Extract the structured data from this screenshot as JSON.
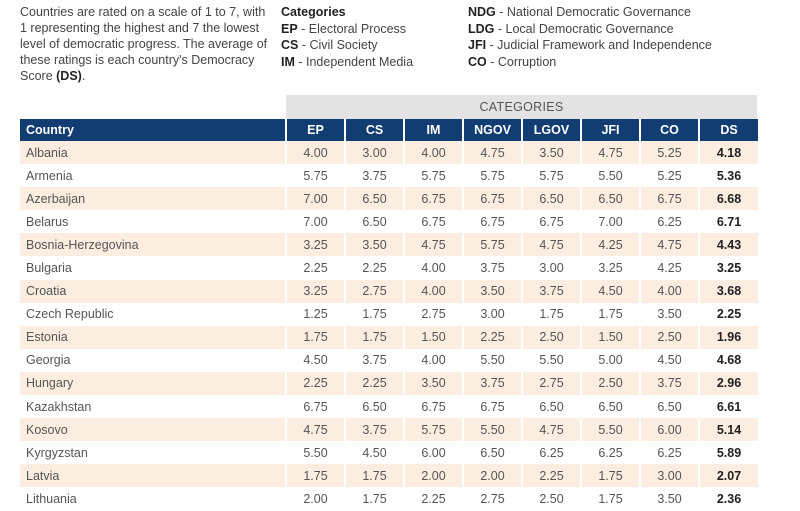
{
  "intro": {
    "text": "Countries are rated on a scale of 1 to 7, with 1 representing the highest and 7 the lowest level of democratic progress. The average of these ratings is each country's Democracy Score ",
    "ds": "(DS)",
    "end": "."
  },
  "legend": {
    "heading": "Categories",
    "left": [
      {
        "abbr": "EP",
        "name": " - Electoral Process"
      },
      {
        "abbr": "CS",
        "name": " - Civil Society"
      },
      {
        "abbr": "IM",
        "name": " - Independent Media"
      }
    ],
    "right": [
      {
        "abbr": "NDG",
        "name": " - National Democratic Governance"
      },
      {
        "abbr": "LDG",
        "name": " - Local Democratic Governance"
      },
      {
        "abbr": "JFI",
        "name": " - Judicial Framework and Independence"
      },
      {
        "abbr": "CO",
        "name": " - Corruption"
      }
    ]
  },
  "banner": "CATEGORIES",
  "columns": [
    "Country",
    "EP",
    "CS",
    "IM",
    "NGOV",
    "LGOV",
    "JFI",
    "CO",
    "DS"
  ],
  "rows": [
    [
      "Albania",
      "4.00",
      "3.00",
      "4.00",
      "4.75",
      "3.50",
      "4.75",
      "5.25",
      "4.18"
    ],
    [
      "Armenia",
      "5.75",
      "3.75",
      "5.75",
      "5.75",
      "5.75",
      "5.50",
      "5.25",
      "5.36"
    ],
    [
      "Azerbaijan",
      "7.00",
      "6.50",
      "6.75",
      "6.75",
      "6.50",
      "6.50",
      "6.75",
      "6.68"
    ],
    [
      "Belarus",
      "7.00",
      "6.50",
      "6.75",
      "6.75",
      "6.75",
      "7.00",
      "6.25",
      "6.71"
    ],
    [
      "Bosnia-Herzegovina",
      "3.25",
      "3.50",
      "4.75",
      "5.75",
      "4.75",
      "4.25",
      "4.75",
      "4.43"
    ],
    [
      "Bulgaria",
      "2.25",
      "2.25",
      "4.00",
      "3.75",
      "3.00",
      "3.25",
      "4.25",
      "3.25"
    ],
    [
      "Croatia",
      "3.25",
      "2.75",
      "4.00",
      "3.50",
      "3.75",
      "4.50",
      "4.00",
      "3.68"
    ],
    [
      "Czech Republic",
      "1.25",
      "1.75",
      "2.75",
      "3.00",
      "1.75",
      "1.75",
      "3.50",
      "2.25"
    ],
    [
      "Estonia",
      "1.75",
      "1.75",
      "1.50",
      "2.25",
      "2.50",
      "1.50",
      "2.50",
      "1.96"
    ],
    [
      "Georgia",
      "4.50",
      "3.75",
      "4.00",
      "5.50",
      "5.50",
      "5.00",
      "4.50",
      "4.68"
    ],
    [
      "Hungary",
      "2.25",
      "2.25",
      "3.50",
      "3.75",
      "2.75",
      "2.50",
      "3.75",
      "2.96"
    ],
    [
      "Kazakhstan",
      "6.75",
      "6.50",
      "6.75",
      "6.75",
      "6.50",
      "6.50",
      "6.50",
      "6.61"
    ],
    [
      "Kosovo",
      "4.75",
      "3.75",
      "5.75",
      "5.50",
      "4.75",
      "5.50",
      "6.00",
      "5.14"
    ],
    [
      "Kyrgyzstan",
      "5.50",
      "4.50",
      "6.00",
      "6.50",
      "6.25",
      "6.25",
      "6.25",
      "5.89"
    ],
    [
      "Latvia",
      "1.75",
      "1.75",
      "2.00",
      "2.00",
      "2.25",
      "1.75",
      "3.00",
      "2.07"
    ],
    [
      "Lithuania",
      "2.00",
      "1.75",
      "2.25",
      "2.75",
      "2.50",
      "1.75",
      "3.50",
      "2.36"
    ]
  ]
}
